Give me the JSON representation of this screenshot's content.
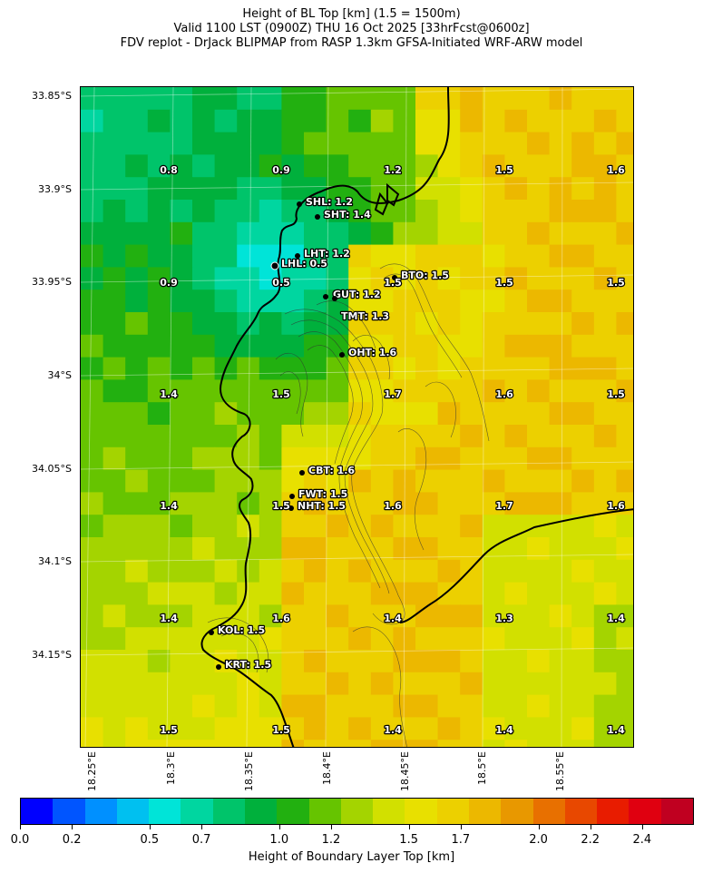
{
  "title": {
    "line1": "Height of BL Top [km] (1.5 = 1500m)",
    "line2": "Valid 1100 LST (0900Z) THU 16 Oct 2025 [33hrFcst@0600z]",
    "line3": "FDV replot - DrJack BLIPMAP from RASP 1.3km GFSA-Initiated WRF-ARW model"
  },
  "lat_labels": [
    "33.85°S",
    "33.9°S",
    "33.95°S",
    "34°S",
    "34.05°S",
    "34.1°S",
    "34.15°S"
  ],
  "lon_labels": [
    "18.25°E",
    "18.3°E",
    "18.35°E",
    "18.4°E",
    "18.45°E",
    "18.5°E",
    "18.55°E"
  ],
  "grid_values": [
    [
      "0.8",
      "0.9",
      "1.2",
      "1.5",
      "1.6"
    ],
    [
      "0.9",
      "0.5",
      "1.5",
      "1.5",
      "1.5"
    ],
    [
      "1.4",
      "1.5",
      "1.7",
      "1.6",
      "1.5"
    ],
    [
      "1.4",
      "1.5",
      "1.6",
      "1.7",
      "1.6"
    ],
    [
      "1.4",
      "1.6",
      "1.4",
      "1.3",
      "1.4"
    ],
    [
      "1.5",
      "1.5",
      "1.4",
      "1.4",
      "1.4"
    ]
  ],
  "stations": [
    {
      "code": "SHL",
      "value": "1.2",
      "text": "SHL: 1.2"
    },
    {
      "code": "SHT",
      "value": "1.4",
      "text": "SHT: 1.4"
    },
    {
      "code": "LHT",
      "value": "1.2",
      "text": "LHT: 1.2"
    },
    {
      "code": "LHL",
      "value": "0.5",
      "text": "LHL: 0.5"
    },
    {
      "code": "BTO",
      "value": "1.5",
      "text": "BTO: 1.5"
    },
    {
      "code": "GUT",
      "value": "1.2",
      "text": "GUT: 1.2"
    },
    {
      "code": "TMT",
      "value": "1.3",
      "text": "TMT: 1.3"
    },
    {
      "code": "OHT",
      "value": "1.6",
      "text": "OHT: 1.6"
    },
    {
      "code": "CBT",
      "value": "1.6",
      "text": "CBT: 1.6"
    },
    {
      "code": "FWT",
      "value": "1.5",
      "text": "FWT: 1.5"
    },
    {
      "code": "NHT",
      "value": "1.5",
      "text": "NHT: 1.5"
    },
    {
      "code": "KOL",
      "value": "1.5",
      "text": "KOL: 1.5"
    },
    {
      "code": "KRT",
      "value": "1.5",
      "text": "KRT: 1.5"
    }
  ],
  "colorbar": {
    "label": "Height of Boundary Layer Top [km]",
    "ticks": [
      "0.0",
      "0.2",
      "0.5",
      "0.7",
      "1.0",
      "1.2",
      "1.5",
      "1.7",
      "2.0",
      "2.2",
      "2.4"
    ],
    "range": [
      0.0,
      2.6
    ],
    "colors": [
      "#0000ff",
      "#0055ff",
      "#0090ff",
      "#00c0f0",
      "#00e4d8",
      "#00d6a0",
      "#00c46a",
      "#00b03c",
      "#22b010",
      "#66c400",
      "#a4d400",
      "#d2e000",
      "#e8e000",
      "#ecd000",
      "#ecb800",
      "#e89800",
      "#e87000",
      "#e84800",
      "#e81c00",
      "#e00010",
      "#c00020"
    ]
  },
  "colors": {
    "coastline": "#000000",
    "contour": "#333333",
    "label_outline": "#000000",
    "label_text": "#ffffff"
  }
}
